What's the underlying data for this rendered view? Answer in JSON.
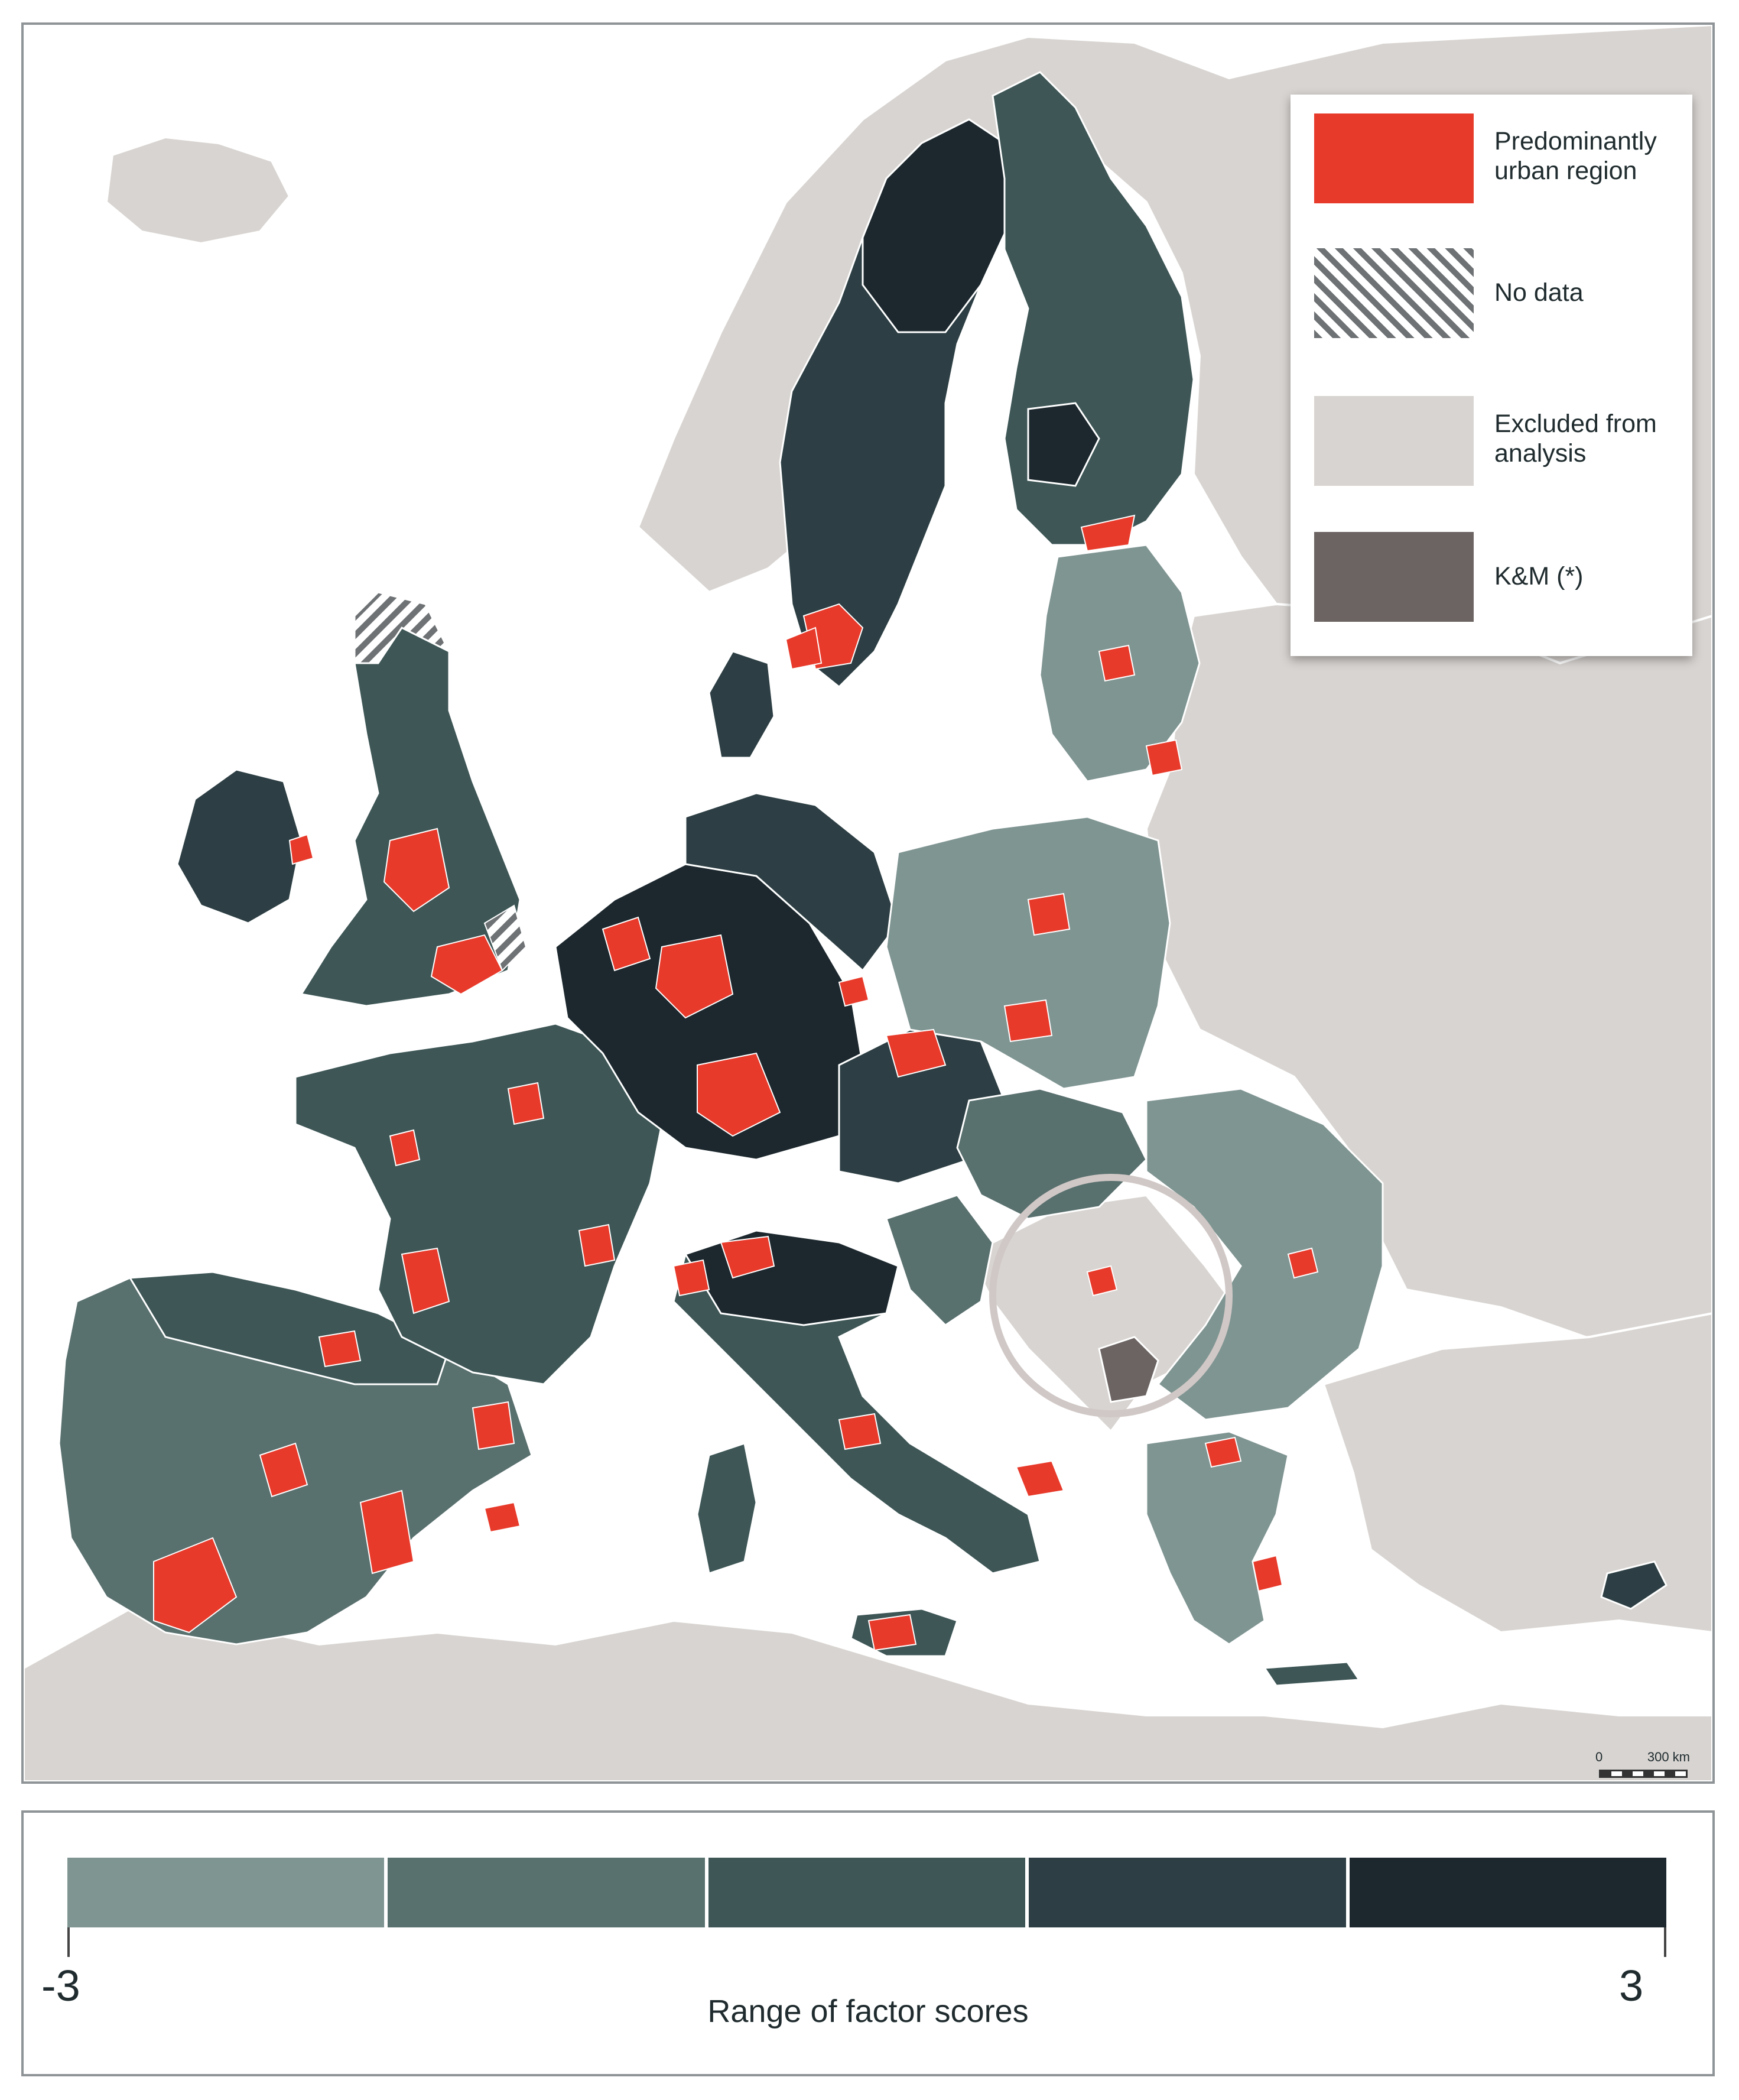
{
  "map": {
    "colors": {
      "sea": "#ffffff",
      "non_eu_land": "#d8d4d1",
      "border_line": "#ffffff",
      "urban": "#e83a2b",
      "km": "#6b6462",
      "no_data_stripe": "#6e7274"
    },
    "scale_bar": {
      "zero_label": "0",
      "max_label": "300 km"
    }
  },
  "legend": {
    "items": [
      {
        "label": "Predominantly urban region",
        "swatch": "solid",
        "color": "#e83a2b"
      },
      {
        "label": "No data",
        "swatch": "hatched",
        "color": "#6e7274"
      },
      {
        "label": "Excluded from analysis",
        "swatch": "solid",
        "color": "#d8d4d1"
      },
      {
        "label": "K&M (*)",
        "swatch": "solid",
        "color": "#6b6462"
      }
    ]
  },
  "score_scale": {
    "min_label": "-3",
    "max_label": "3",
    "title": "Range of factor scores",
    "classes": [
      {
        "color": "#7f9592"
      },
      {
        "color": "#58706e"
      },
      {
        "color": "#3e5656"
      },
      {
        "color": "#2d3f44"
      },
      {
        "color": "#1c282e"
      }
    ]
  }
}
